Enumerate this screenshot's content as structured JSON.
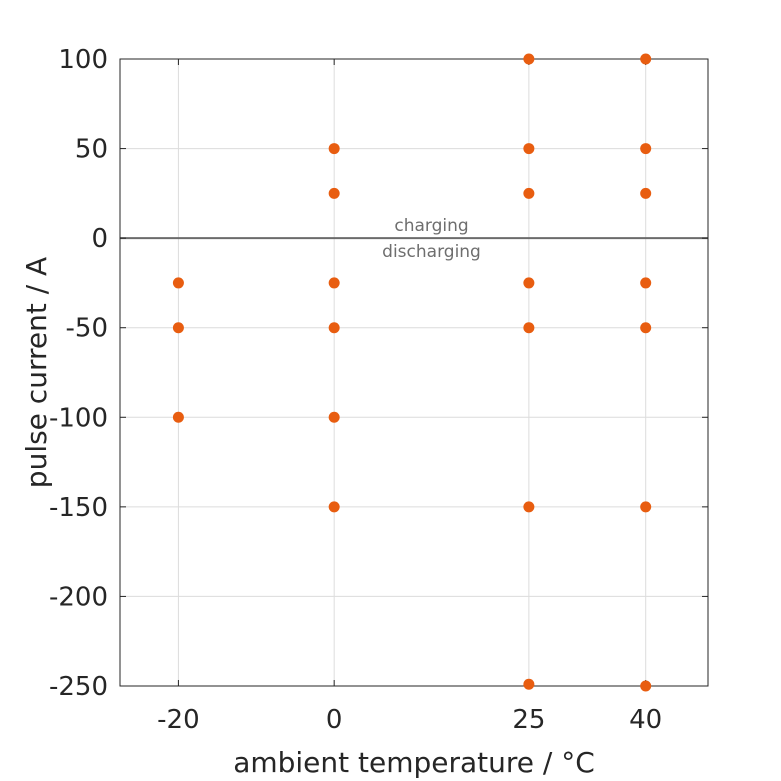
{
  "chart_data": {
    "type": "scatter",
    "xlabel": "ambient temperature / °C",
    "ylabel": "pulse current / A",
    "xlim": [
      -27.5,
      48
    ],
    "ylim": [
      -250,
      100
    ],
    "xticks": [
      -20,
      0,
      25,
      40
    ],
    "yticks": [
      100,
      50,
      0,
      -50,
      -100,
      -150,
      -200,
      -250
    ],
    "grid": true,
    "marker_color": "#e85d10",
    "zero_line_color": "#6b6b6b",
    "annotations": {
      "above_zero": "charging",
      "below_zero": "discharging",
      "annotation_x": 12.5
    },
    "series": [
      {
        "points": [
          {
            "x": -20,
            "y": -25
          },
          {
            "x": -20,
            "y": -50
          },
          {
            "x": -20,
            "y": -100
          },
          {
            "x": 0,
            "y": 50
          },
          {
            "x": 0,
            "y": 25
          },
          {
            "x": 0,
            "y": -25
          },
          {
            "x": 0,
            "y": -50
          },
          {
            "x": 0,
            "y": -100
          },
          {
            "x": 0,
            "y": -150
          },
          {
            "x": 25,
            "y": 100
          },
          {
            "x": 25,
            "y": 50
          },
          {
            "x": 25,
            "y": 25
          },
          {
            "x": 25,
            "y": -25
          },
          {
            "x": 25,
            "y": -50
          },
          {
            "x": 25,
            "y": -150
          },
          {
            "x": 25,
            "y": -249
          },
          {
            "x": 40,
            "y": 100
          },
          {
            "x": 40,
            "y": 50
          },
          {
            "x": 40,
            "y": 25
          },
          {
            "x": 40,
            "y": -25
          },
          {
            "x": 40,
            "y": -50
          },
          {
            "x": 40,
            "y": -150
          },
          {
            "x": 40,
            "y": -250
          }
        ]
      }
    ]
  }
}
